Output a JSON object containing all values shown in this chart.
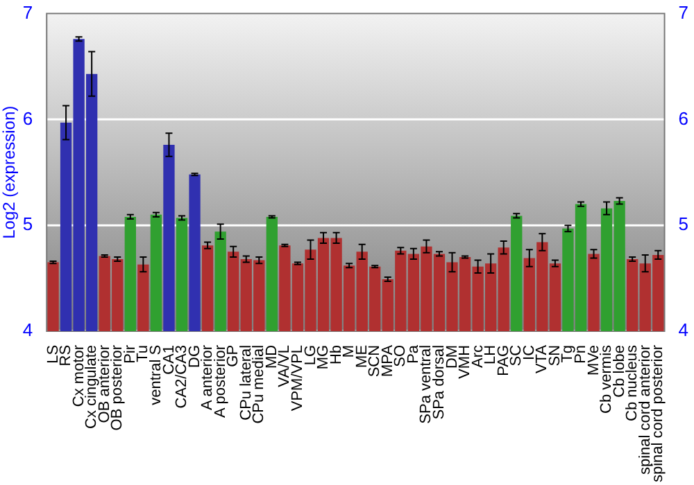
{
  "chart_data": {
    "type": "bar",
    "ylabel": "Log2 (expression)",
    "categories": [
      "LS",
      "RS",
      "Cx motor",
      "Cx cingulate",
      "OB anterior",
      "OB posterior",
      "Pir",
      "Tu",
      "ventral S",
      "CA1",
      "CA2/CA3",
      "DG",
      "A anterior",
      "A posterior",
      "GP",
      "CPu lateral",
      "CPu medial",
      "MD",
      "VA/VL",
      "VPM/VPL",
      "LG",
      "MG",
      "Hb",
      "M",
      "ME",
      "SCN",
      "MPA",
      "SO",
      "Pa",
      "SPa ventral",
      "SPa dorsal",
      "DM",
      "VMH",
      "Arc",
      "LH",
      "PAG",
      "SC",
      "IC",
      "VTA",
      "SN",
      "Tg",
      "Pn",
      "MVe",
      "Cb vermis",
      "Cb lobe",
      "Cb nucleus",
      "spinal cord anterior",
      "spinal cord posterior"
    ],
    "values": [
      4.65,
      5.97,
      6.76,
      6.43,
      4.71,
      4.68,
      5.08,
      4.63,
      5.1,
      5.76,
      5.07,
      5.48,
      4.81,
      4.94,
      4.75,
      4.68,
      4.67,
      5.08,
      4.81,
      4.64,
      4.77,
      4.88,
      4.88,
      4.62,
      4.75,
      4.61,
      4.49,
      4.76,
      4.73,
      4.8,
      4.73,
      4.65,
      4.7,
      4.61,
      4.64,
      4.79,
      5.09,
      4.69,
      4.84,
      4.64,
      4.97,
      5.2,
      4.73,
      5.16,
      5.23,
      4.68,
      4.64,
      4.72
    ],
    "errors": [
      0.01,
      0.16,
      0.02,
      0.21,
      0.01,
      0.02,
      0.02,
      0.07,
      0.02,
      0.11,
      0.02,
      0.01,
      0.03,
      0.07,
      0.05,
      0.03,
      0.03,
      0.01,
      0.01,
      0.01,
      0.09,
      0.05,
      0.05,
      0.02,
      0.07,
      0.01,
      0.02,
      0.03,
      0.05,
      0.06,
      0.02,
      0.09,
      0.01,
      0.06,
      0.09,
      0.06,
      0.02,
      0.08,
      0.08,
      0.03,
      0.03,
      0.02,
      0.04,
      0.06,
      0.03,
      0.02,
      0.08,
      0.04
    ],
    "colors": [
      "#b03030",
      "#3030b0",
      "#3030b0",
      "#3030b0",
      "#b03030",
      "#b03030",
      "#30a030",
      "#b03030",
      "#30a030",
      "#3030b0",
      "#30a030",
      "#3030b0",
      "#b03030",
      "#30a030",
      "#b03030",
      "#b03030",
      "#b03030",
      "#30a030",
      "#b03030",
      "#b03030",
      "#b03030",
      "#b03030",
      "#b03030",
      "#b03030",
      "#b03030",
      "#b03030",
      "#b03030",
      "#b03030",
      "#b03030",
      "#b03030",
      "#b03030",
      "#b03030",
      "#b03030",
      "#b03030",
      "#b03030",
      "#b03030",
      "#30a030",
      "#b03030",
      "#b03030",
      "#b03030",
      "#30a030",
      "#30a030",
      "#b03030",
      "#30a030",
      "#30a030",
      "#b03030",
      "#b03030",
      "#b03030"
    ],
    "ylim": [
      4,
      7
    ],
    "yticks": [
      4,
      5,
      6,
      7
    ],
    "y2lim": [
      4,
      7
    ],
    "y2ticks": [
      4,
      5,
      6,
      7
    ],
    "grid": "y",
    "legend": false
  }
}
